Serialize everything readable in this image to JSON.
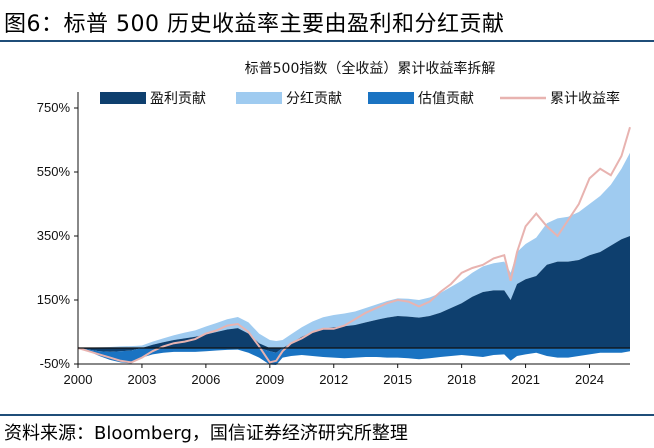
{
  "figure": {
    "title": "图6：标普 500 历史收益率主要由盈利和分红贡献",
    "source": "资料来源：Bloomberg，国信证券经济研究所整理"
  },
  "chart_data": {
    "type": "area",
    "title": "标普500指数（全收益）累计收益率拆解",
    "xlabel": "",
    "ylabel": "",
    "xlim": [
      2000,
      2025.9
    ],
    "ylim": [
      -50,
      800
    ],
    "x_ticks": [
      "2000",
      "2003",
      "2006",
      "2009",
      "2012",
      "2015",
      "2018",
      "2021",
      "2024"
    ],
    "y_ticks": [
      "750%",
      "550%",
      "350%",
      "150%",
      "-50%"
    ],
    "y_tick_values": [
      750,
      550,
      350,
      150,
      -50
    ],
    "legend": {
      "position": "top"
    },
    "colors": {
      "earnings": "#0e3f6e",
      "dividend": "#9fcbf0",
      "valuation": "#1a73c2",
      "cumulative": "#e8b3b0"
    },
    "x": [
      2000.0,
      2000.5,
      2001.0,
      2001.5,
      2002.0,
      2002.5,
      2003.0,
      2003.5,
      2004.0,
      2004.5,
      2005.0,
      2005.5,
      2006.0,
      2006.5,
      2007.0,
      2007.5,
      2008.0,
      2008.5,
      2009.0,
      2009.3,
      2009.6,
      2010.0,
      2010.5,
      2011.0,
      2011.5,
      2012.0,
      2012.5,
      2013.0,
      2013.5,
      2014.0,
      2014.5,
      2015.0,
      2015.5,
      2016.0,
      2016.5,
      2017.0,
      2017.5,
      2018.0,
      2018.5,
      2019.0,
      2019.5,
      2020.0,
      2020.3,
      2020.6,
      2021.0,
      2021.5,
      2022.0,
      2022.5,
      2023.0,
      2023.5,
      2024.0,
      2024.5,
      2025.0,
      2025.5,
      2025.9
    ],
    "series": [
      {
        "name": "盈利贡献",
        "key": "earnings",
        "values": [
          0,
          -5,
          -10,
          -12,
          -10,
          -8,
          0,
          10,
          18,
          25,
          30,
          35,
          42,
          50,
          58,
          62,
          45,
          15,
          -10,
          -15,
          0,
          15,
          35,
          50,
          60,
          65,
          68,
          72,
          80,
          88,
          95,
          100,
          98,
          95,
          100,
          110,
          125,
          140,
          160,
          175,
          180,
          180,
          150,
          200,
          215,
          225,
          260,
          270,
          270,
          275,
          290,
          300,
          320,
          340,
          350
        ]
      },
      {
        "name": "分红贡献",
        "key": "dividend",
        "values": [
          0,
          1,
          2,
          3,
          5,
          6,
          8,
          10,
          12,
          15,
          18,
          20,
          25,
          28,
          32,
          35,
          35,
          30,
          25,
          22,
          25,
          28,
          30,
          33,
          36,
          38,
          40,
          42,
          45,
          48,
          52,
          55,
          56,
          55,
          58,
          62,
          66,
          70,
          75,
          80,
          85,
          90,
          85,
          100,
          110,
          120,
          130,
          135,
          140,
          150,
          160,
          175,
          190,
          220,
          260
        ]
      },
      {
        "name": "估值贡献",
        "key": "valuation",
        "values": [
          0,
          -5,
          -15,
          -25,
          -35,
          -40,
          -30,
          -20,
          -15,
          -12,
          -12,
          -12,
          -10,
          -8,
          -6,
          -5,
          -15,
          -30,
          -42,
          -38,
          -30,
          -25,
          -22,
          -25,
          -28,
          -30,
          -32,
          -30,
          -28,
          -28,
          -30,
          -30,
          -32,
          -35,
          -32,
          -28,
          -25,
          -22,
          -25,
          -28,
          -22,
          -20,
          -40,
          -25,
          -20,
          -15,
          -25,
          -30,
          -30,
          -25,
          -20,
          -15,
          -15,
          -15,
          -10
        ]
      },
      {
        "name": "累计收益率",
        "key": "cumulative",
        "values": [
          0,
          -10,
          -20,
          -30,
          -40,
          -45,
          -30,
          -10,
          5,
          15,
          20,
          28,
          45,
          55,
          70,
          75,
          50,
          5,
          -45,
          -40,
          -10,
          15,
          30,
          50,
          60,
          60,
          70,
          90,
          110,
          125,
          140,
          150,
          145,
          130,
          145,
          175,
          200,
          235,
          250,
          260,
          280,
          290,
          210,
          300,
          380,
          420,
          380,
          350,
          400,
          450,
          530,
          560,
          540,
          600,
          690
        ]
      }
    ]
  }
}
